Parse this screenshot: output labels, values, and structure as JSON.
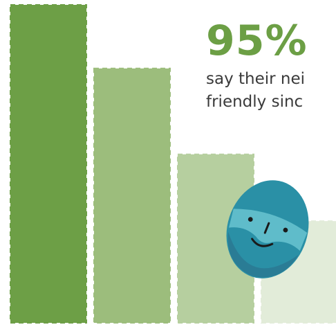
{
  "stat": {
    "value": "95%",
    "caption_line1": "say their nei",
    "caption_line2": "friendly sinc"
  },
  "colors": {
    "accent": "#6c9f45",
    "bars": [
      "#6d9f46",
      "#9cbd7c",
      "#b6cf9f",
      "#e2ecd9"
    ],
    "mascot_body": "#2a90a6",
    "mascot_shadow": "#2a7c95",
    "mascot_face": "#5fbcca",
    "mascot_features": "#1a1a1a"
  },
  "mascot": {
    "icon": "blue-bearded-face-icon"
  },
  "chart_data": {
    "type": "bar",
    "categories": [
      "",
      "",
      "",
      ""
    ],
    "values": [
      100,
      80,
      53,
      32
    ],
    "ylim": [
      0,
      100
    ],
    "grid": false,
    "legend": "none",
    "title": "",
    "xlabel": "",
    "ylabel": ""
  }
}
